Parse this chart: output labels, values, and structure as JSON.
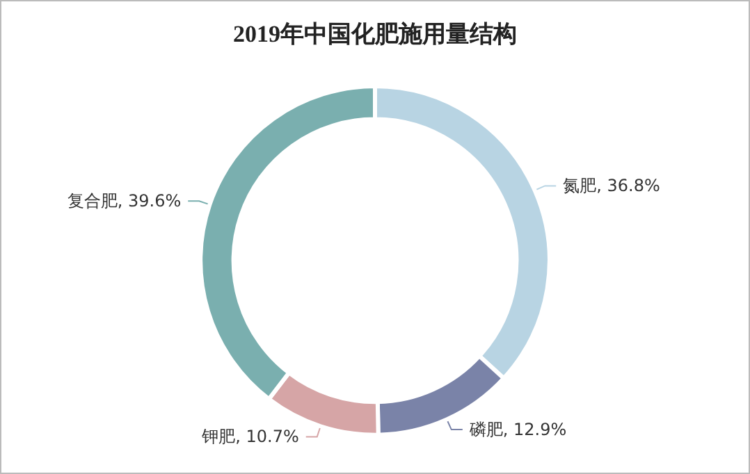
{
  "chart_data": {
    "type": "donut",
    "title": "2019年中国化肥施用量结构",
    "categories": [
      "氮肥",
      "磷肥",
      "钾肥",
      "复合肥"
    ],
    "values": [
      36.8,
      12.9,
      10.7,
      39.6
    ],
    "colors": [
      "#b8d4e3",
      "#7a83a8",
      "#d6a5a6",
      "#7aafaf"
    ],
    "value_labels": [
      "36.8%",
      "12.9%",
      "10.7%",
      "39.6%"
    ],
    "legend": false
  }
}
